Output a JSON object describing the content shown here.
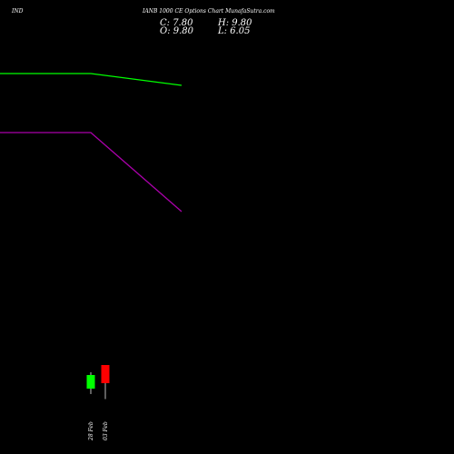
{
  "header": {
    "symbol": "IND",
    "title": "IANB 1000  CE Options  Chart MunafaSutra.com"
  },
  "ohlc": {
    "c_label": "C: 7.80",
    "h_label": "H: 9.80",
    "o_label": "O: 9.80",
    "l_label": "L: 6.05"
  },
  "chart_data": {
    "type": "candlestick",
    "ylim": [
      0,
      50
    ],
    "candles": [
      {
        "date": "28 Feb",
        "open": 7.2,
        "high": 9.0,
        "low": 6.6,
        "close": 8.7,
        "color": "#00ff00"
      },
      {
        "date": "03 Feb",
        "open": 9.8,
        "high": 9.8,
        "low": 6.05,
        "close": 7.8,
        "color": "#ff0000"
      }
    ],
    "series": [
      {
        "values": [
          41.9,
          41.9,
          40.6
        ],
        "color": "#00ff00"
      },
      {
        "values": [
          35.4,
          35.4,
          26.7
        ],
        "color": "#aa00aa"
      }
    ]
  }
}
